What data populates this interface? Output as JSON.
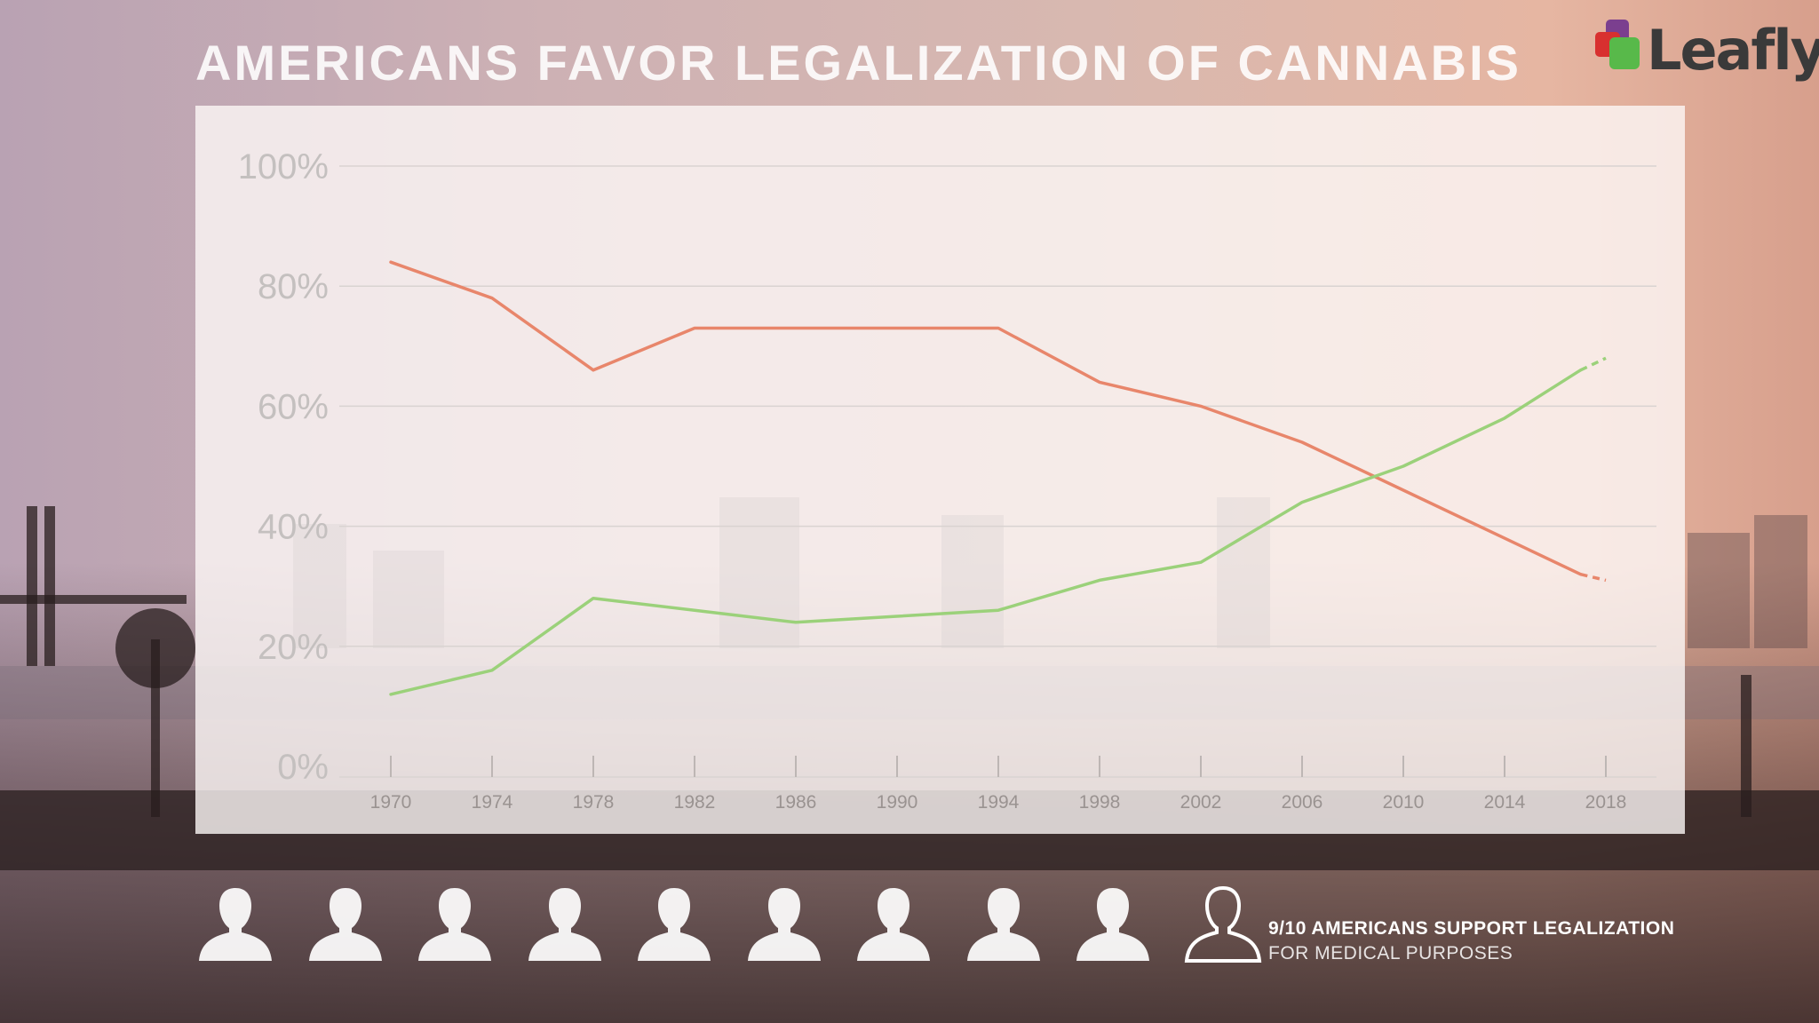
{
  "header": {
    "title": "AMERICANS FAVOR LEGALIZATION OF CANNABIS"
  },
  "logo": {
    "text": "Leafly",
    "colors": [
      "#7b3f8f",
      "#d8302f",
      "#58b94a"
    ]
  },
  "chart_data": {
    "type": "line",
    "x": [
      1970,
      1974,
      1978,
      1982,
      1986,
      1990,
      1994,
      1998,
      2002,
      2006,
      2010,
      2014,
      2018
    ],
    "x_tick_labels": [
      "1970",
      "1974",
      "1978",
      "1982",
      "1986",
      "1990",
      "1994",
      "1998",
      "2002",
      "2006",
      "2010",
      "2014",
      "2018"
    ],
    "y_tick_labels": [
      "100%",
      "80%",
      "60%",
      "40%",
      "20%",
      "0%"
    ],
    "y_ticks": [
      100,
      80,
      60,
      40,
      20,
      0
    ],
    "ylim": [
      0,
      100
    ],
    "xlim": [
      1970,
      2018
    ],
    "grid": true,
    "series": [
      {
        "color": "#e8866b",
        "x": [
          1970,
          1974,
          1978,
          1982,
          1994,
          1998,
          2002,
          2006,
          2010,
          2014,
          2017
        ],
        "values": [
          84,
          78,
          66,
          73,
          73,
          64,
          60,
          54,
          46,
          38,
          32
        ],
        "projection_to": {
          "x": 2018,
          "value": 31
        }
      },
      {
        "color": "#9bd17a",
        "x": [
          1970,
          1974,
          1978,
          1982,
          1986,
          1990,
          1994,
          1998,
          2002,
          2006,
          2010,
          2014,
          2017
        ],
        "values": [
          12,
          16,
          28,
          26,
          24,
          25,
          26,
          31,
          34,
          44,
          50,
          58,
          66
        ],
        "projection_to": {
          "x": 2018,
          "value": 68
        }
      }
    ]
  },
  "footer": {
    "people_total": 10,
    "people_filled": 9,
    "caption_line1": "9/10 AMERICANS SUPPORT LEGALIZATION",
    "caption_line2": "FOR MEDICAL PURPOSES"
  }
}
